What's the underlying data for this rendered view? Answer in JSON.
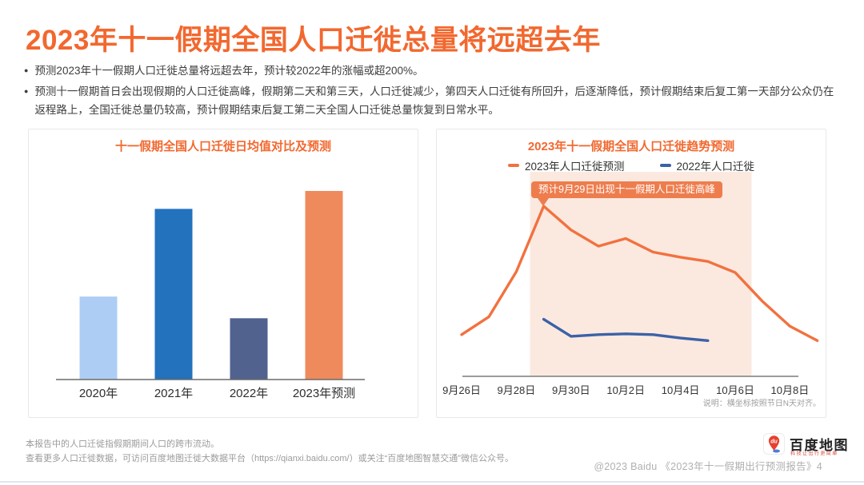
{
  "page": {
    "title": "2023年十一假期全国人口迁徙总量将远超去年",
    "bullets": [
      "预测2023年十一假期人口迁徙总量将远超去年，预计较2022年的涨幅或超200%。",
      "预测十一假期首日会出现假期的人口迁徙高峰，假期第二天和第三天，人口迁徙减少，第四天人口迁徙有所回升，后逐渐降低，预计假期结束后复工第一天部分公众仍在返程路上，全国迁徙总量仍较高，预计假期结束后复工第二天全国人口迁徙总量恢复到日常水平。"
    ]
  },
  "colors": {
    "accent_orange": "#F2682F",
    "line_orange": "#F2713F",
    "line_blue": "#3B62A6",
    "annotation_bg": "#EE7D4E",
    "holiday_band": "#FBE9E0",
    "axis_gray": "#6a6a6a"
  },
  "chart_data": [
    {
      "type": "bar",
      "title": "十一假期全国人口迁徙日均值对比及预测",
      "categories": [
        "2020年",
        "2021年",
        "2022年",
        "2023年预测"
      ],
      "values": [
        44,
        90.5,
        32.5,
        100
      ],
      "value_scale": "相对迁徙规模指数，2023年预测=100（图中未标注数值，无y轴）",
      "colors": [
        "#AECDF4",
        "#2272BE",
        "#51628F",
        "#EF8A5C"
      ],
      "ylim": [
        0,
        100
      ],
      "grid": false,
      "y_axis": "hidden"
    },
    {
      "type": "line",
      "title": "2023年十一假期全国人口迁徙趋势预测",
      "x": [
        "9月26日",
        "9月27日",
        "9月28日",
        "9月29日",
        "9月30日",
        "10月1日",
        "10月2日",
        "10月3日",
        "10月4日",
        "10月5日",
        "10月6日",
        "10月7日",
        "10月8日",
        "10月9日"
      ],
      "x_ticks_shown": [
        "9月26日",
        "9月28日",
        "9月30日",
        "10月2日",
        "10月4日",
        "10月6日",
        "10月8日"
      ],
      "series": [
        {
          "name": "2023年人口迁徙预测",
          "color": "#F2713F",
          "values": [
            24.5,
            35,
            61.5,
            100,
            86,
            76.5,
            81,
            73,
            70,
            67.5,
            61,
            44,
            29.5,
            21
          ]
        },
        {
          "name": "2022年人口迁徙",
          "color": "#3B62A6",
          "values": [
            null,
            null,
            null,
            33.5,
            23.5,
            24.5,
            25,
            24.5,
            22.5,
            21,
            null,
            null,
            null,
            null
          ]
        }
      ],
      "annotation": {
        "text": "预计9月29日出现十一假期人口迁徙高峰",
        "target_x": "9月29日",
        "color": "#EE7D4E"
      },
      "holiday_band": {
        "from": "9月29日",
        "to": "10月6日",
        "color": "#FBE9E0"
      },
      "footnote": "说明：横坐标按照节日N天对齐。",
      "ylim": [
        0,
        100
      ],
      "grid": false,
      "y_axis": "hidden",
      "legend_position": "top"
    }
  ],
  "footer": {
    "notes": [
      "本报告中的人口迁徙指假期期间人口的跨市流动。",
      "查看更多人口迁徙数据，可访问百度地图迁徙大数据平台（https://qianxi.baidu.com/）或关注“百度地图智慧交通”微信公众号。"
    ],
    "brand": {
      "name": "百度地图",
      "tagline": "科技让出行更简单",
      "pin_text": "du"
    },
    "copyright": "@2023 Baidu 《2023年十一假期出行预测报告》4"
  }
}
